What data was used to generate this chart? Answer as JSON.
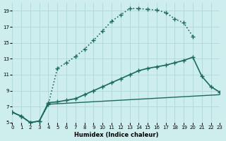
{
  "xlabel": "Humidex (Indice chaleur)",
  "bg_color": "#ceeeed",
  "grid_color": "#b0d8d8",
  "line_color": "#1a6b5a",
  "xlim": [
    0,
    23
  ],
  "ylim": [
    5,
    20
  ],
  "xticks": [
    0,
    1,
    2,
    3,
    4,
    5,
    6,
    7,
    8,
    9,
    10,
    11,
    12,
    13,
    14,
    15,
    16,
    17,
    18,
    19,
    20,
    21,
    22,
    23
  ],
  "yticks": [
    5,
    7,
    9,
    11,
    13,
    15,
    17,
    19
  ],
  "series": [
    {
      "x": [
        0,
        1,
        2,
        3,
        4,
        5,
        6,
        7,
        8,
        9,
        10,
        11,
        12,
        13,
        14,
        15,
        16,
        17,
        18,
        19,
        20,
        21,
        22,
        23
      ],
      "y": [
        6.3,
        5.8,
        5.0,
        5.2,
        7.3,
        11.8,
        12.5,
        13.3,
        14.2,
        15.3,
        16.5,
        17.7,
        18.5,
        19.3,
        19.3,
        19.2,
        19.1,
        18.8,
        18.0,
        17.5,
        15.8,
        null,
        null,
        null
      ],
      "has_null": true,
      "marker": "+",
      "markersize": 4,
      "linestyle": ":",
      "linewidth": 1.2
    },
    {
      "x": [
        0,
        1,
        2,
        3,
        4,
        5,
        6,
        7,
        8,
        9,
        10,
        11,
        12,
        13,
        14,
        15,
        16,
        17,
        18,
        19,
        20,
        21,
        22,
        23
      ],
      "y": [
        6.3,
        5.8,
        5.0,
        5.2,
        7.5,
        7.6,
        7.8,
        8.0,
        8.5,
        9.0,
        9.5,
        10.0,
        10.5,
        11.0,
        11.5,
        11.8,
        12.0,
        12.2,
        12.5,
        12.8,
        13.2,
        10.8,
        9.5,
        8.8
      ],
      "has_null": false,
      "marker": "+",
      "markersize": 4,
      "linestyle": "-",
      "linewidth": 1.2
    },
    {
      "x": [
        0,
        1,
        2,
        3,
        4,
        23
      ],
      "y": [
        6.3,
        5.8,
        5.0,
        5.2,
        7.3,
        8.5
      ],
      "has_null": false,
      "marker": null,
      "markersize": 0,
      "linestyle": "-",
      "linewidth": 1.0
    }
  ]
}
